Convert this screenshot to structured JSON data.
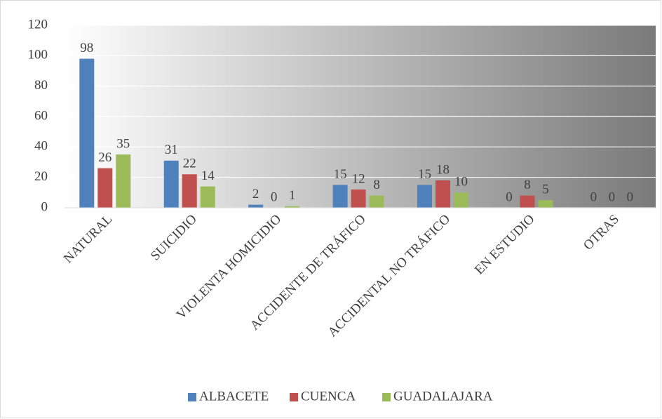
{
  "chart_data": {
    "type": "bar",
    "categories": [
      "NATURAL",
      "SUICIDIO",
      "VIOLENTA HOMICIDIO",
      "ACCIDENTE DE TRÁFICO",
      "ACCIDENTAL NO TRÁFICO",
      "EN ESTUDIO",
      "OTRAS"
    ],
    "series": [
      {
        "name": "ALBACETE",
        "color": "#4f81bd",
        "values": [
          98,
          31,
          2,
          15,
          15,
          0,
          0
        ]
      },
      {
        "name": "CUENCA",
        "color": "#c0504d",
        "values": [
          26,
          22,
          0,
          12,
          18,
          8,
          0
        ]
      },
      {
        "name": "GUADALAJARA",
        "color": "#9bbb59",
        "values": [
          35,
          14,
          1,
          8,
          10,
          5,
          0
        ]
      }
    ],
    "ylim": [
      0,
      120
    ],
    "yticks": [
      0,
      20,
      40,
      60,
      80,
      100,
      120
    ],
    "grid": true,
    "legend": "bottom"
  }
}
